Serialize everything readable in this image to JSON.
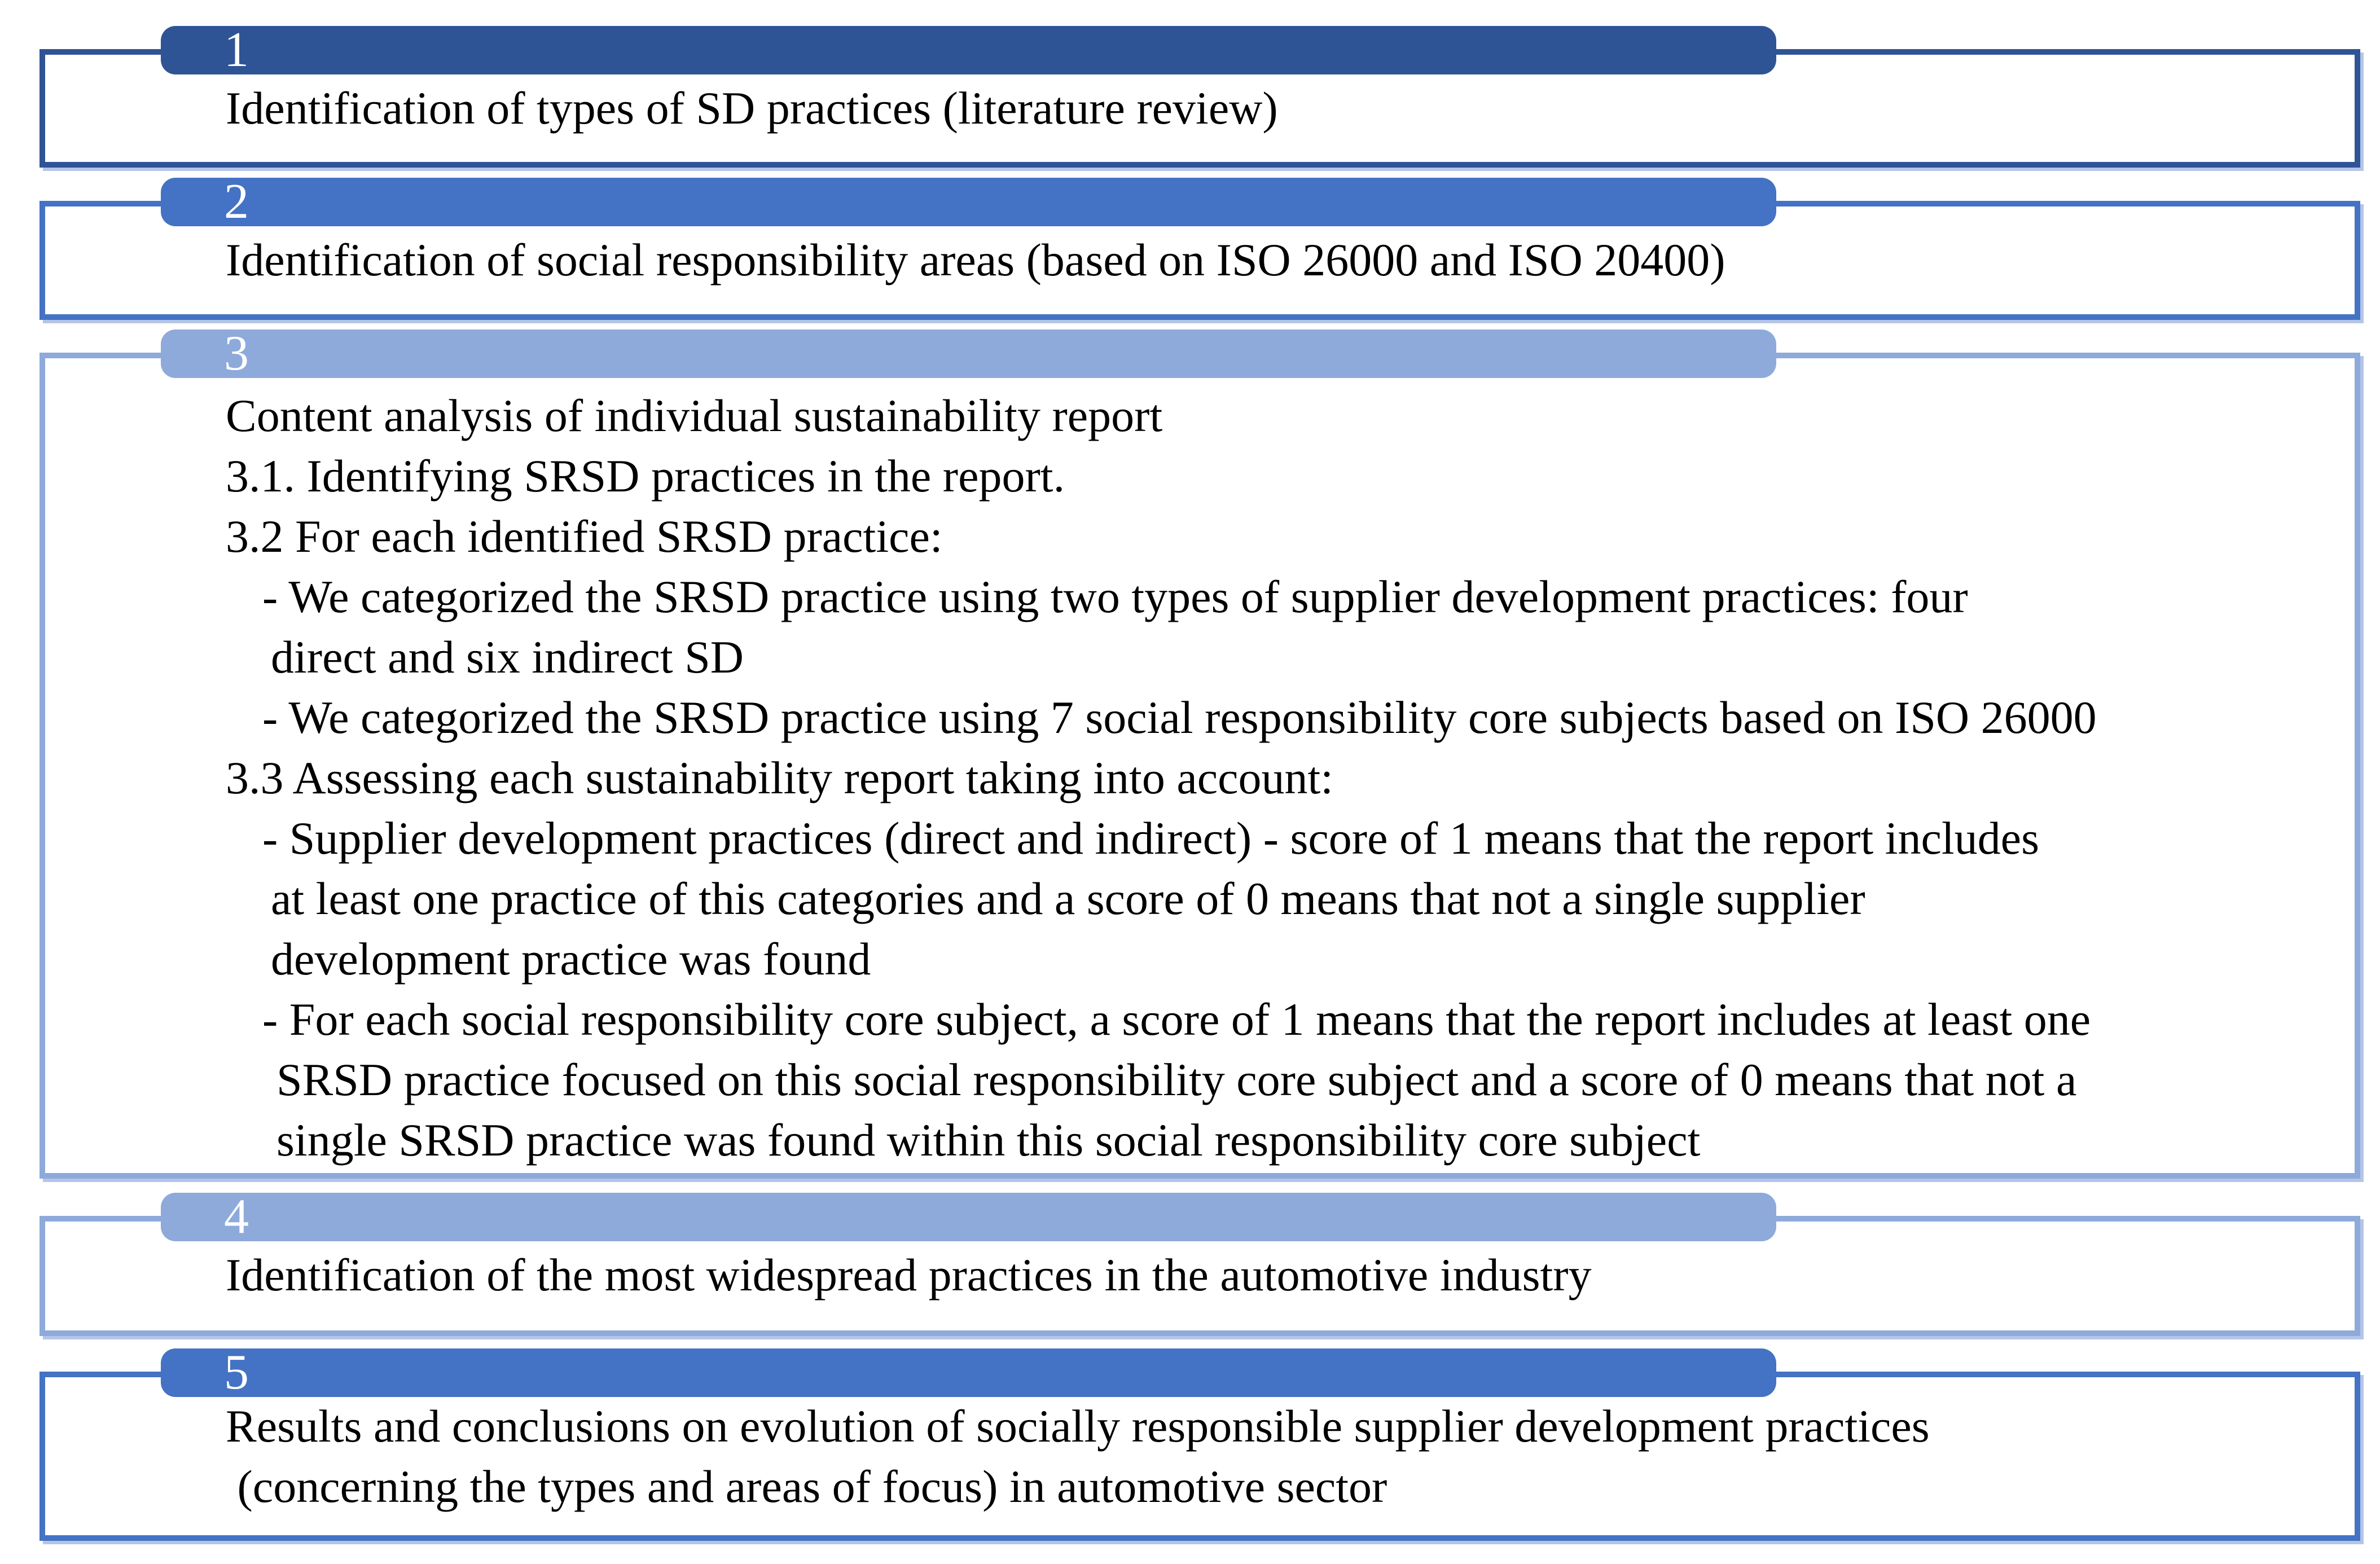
{
  "diagram": {
    "title": "Research methodology process diagram",
    "colors": {
      "step_dark_blue": "#2F5496",
      "step_medium_blue": "#4472C4",
      "step_light_blue": "#8EAADB",
      "panel_shadow": "#B4C6E7",
      "panel_background": "#FFFFFF",
      "body_text": "#000000",
      "number_text": "#FFFFFF"
    },
    "steps": [
      {
        "number": "1",
        "color": "#2F5496",
        "lines": [
          {
            "indent": 0,
            "text": "Identification of types of SD practices (literature review)"
          }
        ]
      },
      {
        "number": "2",
        "color": "#4472C4",
        "lines": [
          {
            "indent": 0,
            "text": "Identification of social responsibility areas (based on ISO 26000 and ISO 20400)"
          }
        ]
      },
      {
        "number": "3",
        "color": "#8EAADB",
        "lines": [
          {
            "indent": 0,
            "text": "Content analysis of individual sustainability report"
          },
          {
            "indent": 0,
            "text": "3.1. Identifying SRSD practices in the report."
          },
          {
            "indent": 0,
            "text": "3.2 For each identified SRSD practice:"
          },
          {
            "indent": 1,
            "text": "- We categorized the SRSD practice using two types of supplier development practices: four"
          },
          {
            "indent": 2,
            "text": "direct and six indirect SD"
          },
          {
            "indent": 1,
            "text": "- We categorized the SRSD practice using 7 social responsibility core subjects based on ISO 26000"
          },
          {
            "indent": 0,
            "text": "3.3 Assessing each sustainability report taking into account:"
          },
          {
            "indent": 1,
            "text": "- Supplier development practices (direct and indirect) - score of 1 means that the report includes"
          },
          {
            "indent": 2,
            "text": "at least one practice of this categories and a score of 0 means that not a single supplier"
          },
          {
            "indent": 2,
            "text": "development practice was found"
          },
          {
            "indent": 1,
            "text": "- For each social responsibility core subject, a score of 1 means that the report includes at least one"
          },
          {
            "indent": 3,
            "text": "SRSD practice focused on this social responsibility core subject and a score of 0 means that not a"
          },
          {
            "indent": 3,
            "text": "single SRSD practice was found within this social responsibility core subject"
          }
        ]
      },
      {
        "number": "4",
        "color": "#8EAADB",
        "lines": [
          {
            "indent": 0,
            "text": "Identification of the most widespread practices in the automotive industry"
          }
        ]
      },
      {
        "number": "5",
        "color": "#4472C4",
        "lines": [
          {
            "indent": 0,
            "text": "Results and conclusions on evolution of socially responsible supplier development practices"
          },
          {
            "indent": 0,
            "text": " (concerning the types and areas of focus) in automotive sector"
          }
        ]
      }
    ]
  }
}
